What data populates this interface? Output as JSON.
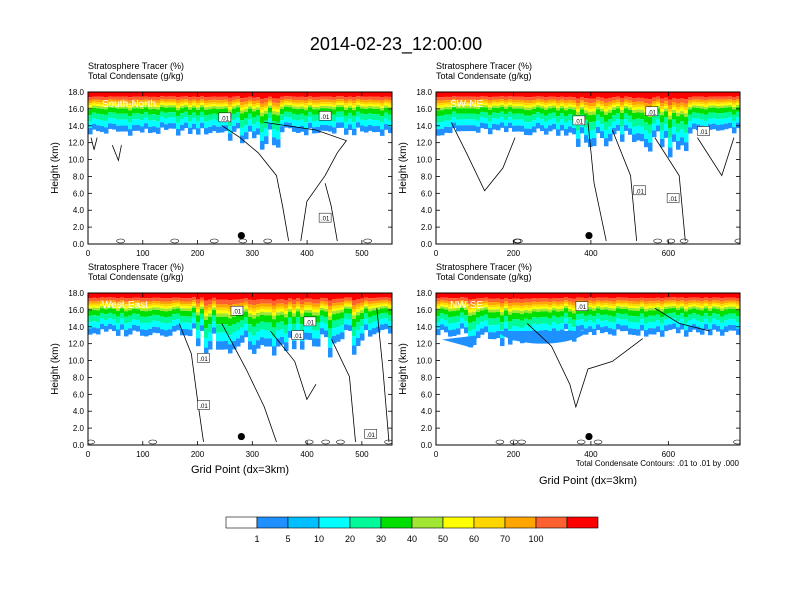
{
  "title": "2014-02-23_12:00:00",
  "panel_header_line1": "Stratosphere Tracer   (%)",
  "panel_header_line2": "Total Condensate   (g/kg)",
  "ylabel": "Height (km)",
  "xlabel": "Grid Point (dx=3km)",
  "contour_note": "Total Condensate Contours: .01 to .01 by .000",
  "colorbar": {
    "labels": [
      "1",
      "5",
      "10",
      "20",
      "30",
      "40",
      "50",
      "60",
      "70",
      "100"
    ],
    "colors": [
      "#ffffff",
      "#1e90ff",
      "#00bfff",
      "#00ffff",
      "#00fa9a",
      "#00e000",
      "#a0e632",
      "#ffff00",
      "#ffd700",
      "#ffa500",
      "#ff6030",
      "#ff0000"
    ]
  },
  "chart_data": [
    {
      "type": "heatmap",
      "panel": "South-North",
      "title": "South-North",
      "ylim": [
        0,
        18
      ],
      "xlim": [
        0,
        555
      ],
      "xticks": [
        "0",
        "100",
        "200",
        "300",
        "400",
        "500"
      ],
      "yticks": [
        "0.0",
        "2.0",
        "4.0",
        "6.0",
        "8.0",
        "10.0",
        "12.0",
        "14.0",
        "16.0",
        "18.0"
      ],
      "contour_labels": [
        ".01",
        ".01",
        ".01"
      ],
      "marker_x": 280,
      "marker_y": 1.0
    },
    {
      "type": "heatmap",
      "panel": "SW-NE",
      "title": "SW-NE",
      "ylim": [
        0,
        18
      ],
      "xlim": [
        0,
        785
      ],
      "xticks": [
        "0",
        "200",
        "400",
        "600"
      ],
      "yticks": [
        "0.0",
        "2.0",
        "4.0",
        "6.0",
        "8.0",
        "10.0",
        "12.0",
        "14.0",
        "16.0",
        "18.0"
      ],
      "contour_labels": [
        ".01",
        ".01",
        ".01",
        ".01",
        ".01"
      ],
      "marker_x": 395,
      "marker_y": 1.0
    },
    {
      "type": "heatmap",
      "panel": "West-East",
      "title": "West-East",
      "ylim": [
        0,
        18
      ],
      "xlim": [
        0,
        555
      ],
      "xticks": [
        "0",
        "100",
        "200",
        "300",
        "400",
        "500"
      ],
      "yticks": [
        "0.0",
        "2.0",
        "4.0",
        "6.0",
        "8.0",
        "10.0",
        "12.0",
        "14.0",
        "16.0",
        "18.0"
      ],
      "contour_labels": [
        ".01",
        ".01",
        ".01",
        ".01",
        ".01",
        ".01"
      ],
      "marker_x": 280,
      "marker_y": 1.0
    },
    {
      "type": "heatmap",
      "panel": "NW-SE",
      "title": "NW-SE",
      "ylim": [
        0,
        18
      ],
      "xlim": [
        0,
        785
      ],
      "xticks": [
        "0",
        "200",
        "400",
        "600"
      ],
      "yticks": [
        "0.0",
        "2.0",
        "4.0",
        "6.0",
        "8.0",
        "10.0",
        "12.0",
        "14.0",
        "16.0",
        "18.0"
      ],
      "contour_labels": [
        ".01"
      ],
      "marker_x": 395,
      "marker_y": 1.0
    }
  ]
}
